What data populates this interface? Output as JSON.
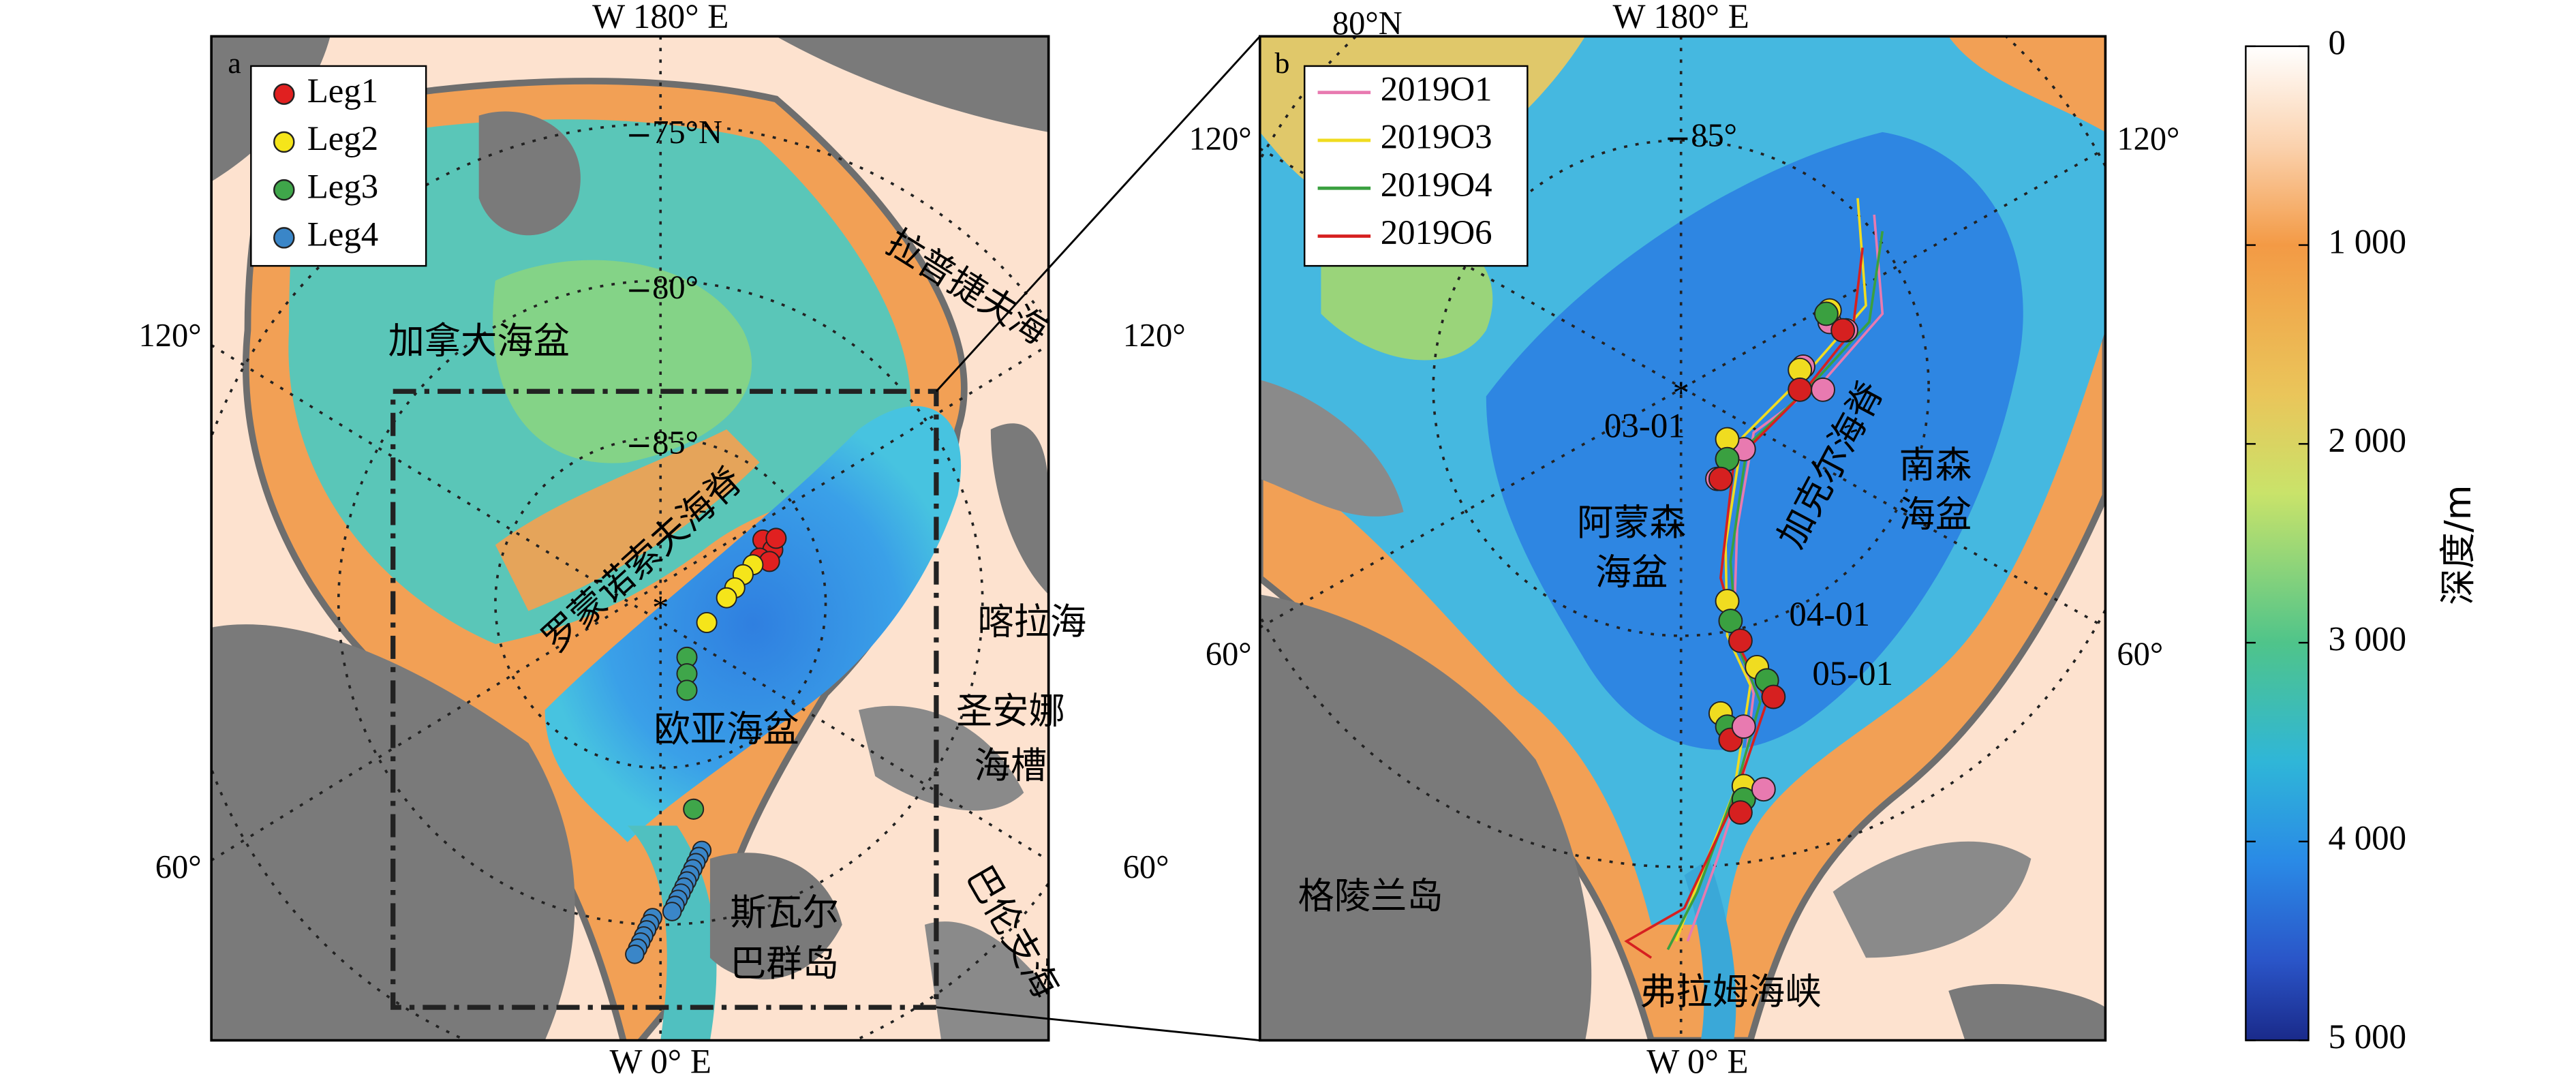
{
  "panel_a": {
    "label": "a",
    "top_axis": "W 180° E",
    "bottom_axis": "W 0° E",
    "lat_labels": [
      "75°N",
      "80°",
      "85°"
    ],
    "lon_labels": [
      "120°",
      "120°",
      "60°",
      "60°"
    ],
    "legend": [
      "Leg1",
      "Leg2",
      "Leg3",
      "Leg4"
    ],
    "places": [
      "加拿大海盆",
      "拉普捷夫海",
      "罗蒙诺索夫海脊",
      "欧亚海盆",
      "喀拉海",
      "圣安娜",
      "海槽",
      "斯瓦尔",
      "巴群岛",
      "巴伦支海"
    ]
  },
  "panel_b": {
    "label": "b",
    "top_axis": "W 180° E",
    "bottom_axis": "W 0° E",
    "lat_labels": [
      "80°N",
      "85°"
    ],
    "lon_labels": [
      "120°",
      "120°",
      "60°",
      "60°"
    ],
    "legend": [
      "2019O1",
      "2019O3",
      "2019O4",
      "2019O6"
    ],
    "dates": [
      "03-01",
      "04-01",
      "05-01"
    ],
    "places": [
      "阿蒙森",
      "海盆",
      "加克尔海脊",
      "南森",
      "海盆",
      "格陵兰岛",
      "弗拉姆海峡"
    ]
  },
  "colorbar": {
    "label": "深度/m",
    "ylim": [
      0,
      5000
    ],
    "ticks": [
      0,
      {
        "value": 1000,
        "label": "1 000"
      },
      {
        "value": 2000,
        "label": "2 000"
      },
      {
        "value": 3000,
        "label": "3 000"
      },
      {
        "value": 4000,
        "label": "4 000"
      },
      {
        "value": 5000,
        "label": "5 000"
      }
    ]
  }
}
